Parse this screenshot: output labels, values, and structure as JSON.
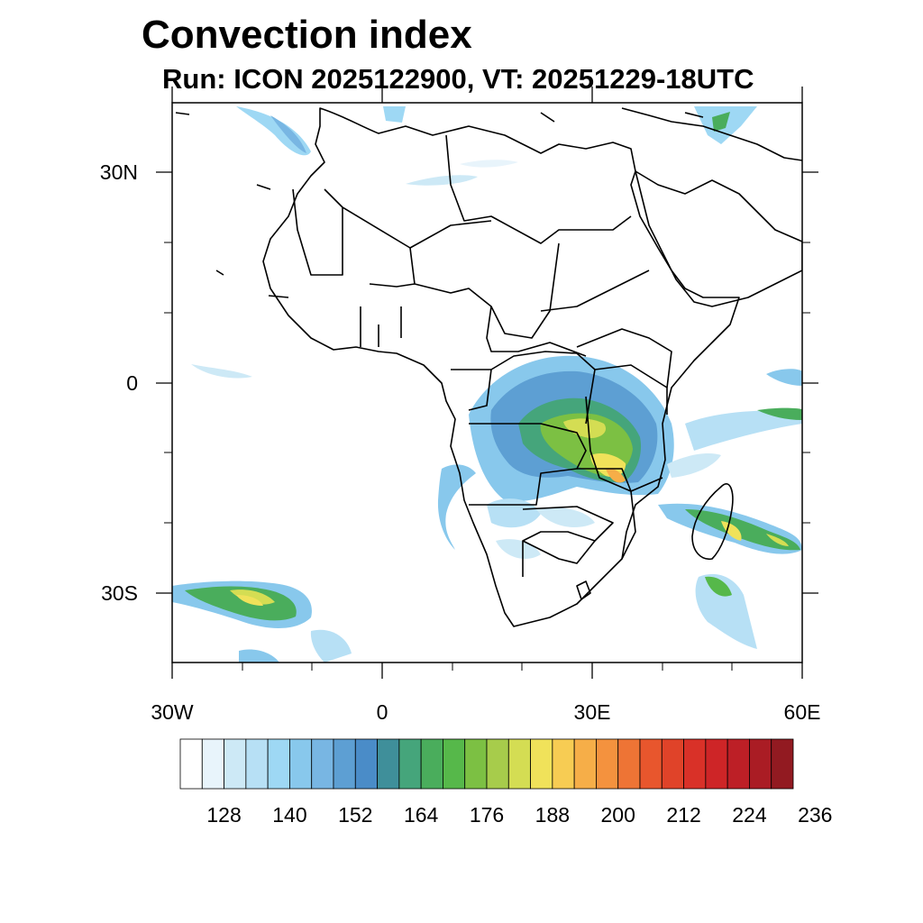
{
  "title": "Convection index",
  "subtitle": "Run: ICON 2025122900,  VT: 20251229-18UTC",
  "map": {
    "lat_labels": [
      "30N",
      "0",
      "30S"
    ],
    "lon_labels": [
      "30W",
      "0",
      "30E",
      "60E"
    ]
  },
  "colorbar": {
    "labels": [
      "128",
      "140",
      "152",
      "164",
      "176",
      "188",
      "200",
      "212",
      "224",
      "236"
    ],
    "colors": [
      "#ffffff",
      "#e8f4fb",
      "#cde9f6",
      "#b7e0f5",
      "#9ed8f4",
      "#88c8ec",
      "#78b6e3",
      "#5d9fd3",
      "#4a8cc8",
      "#3f8f9a",
      "#45a57b",
      "#4aad5c",
      "#56b84a",
      "#7cc043",
      "#a7cc4b",
      "#d4dd53",
      "#f0e25a",
      "#f7cc53",
      "#f6ae48",
      "#f4923e",
      "#ee7435",
      "#e8562d",
      "#e04329",
      "#d93128",
      "#ce2527",
      "#bd1f26",
      "#aa1c24",
      "#921a21"
    ]
  }
}
